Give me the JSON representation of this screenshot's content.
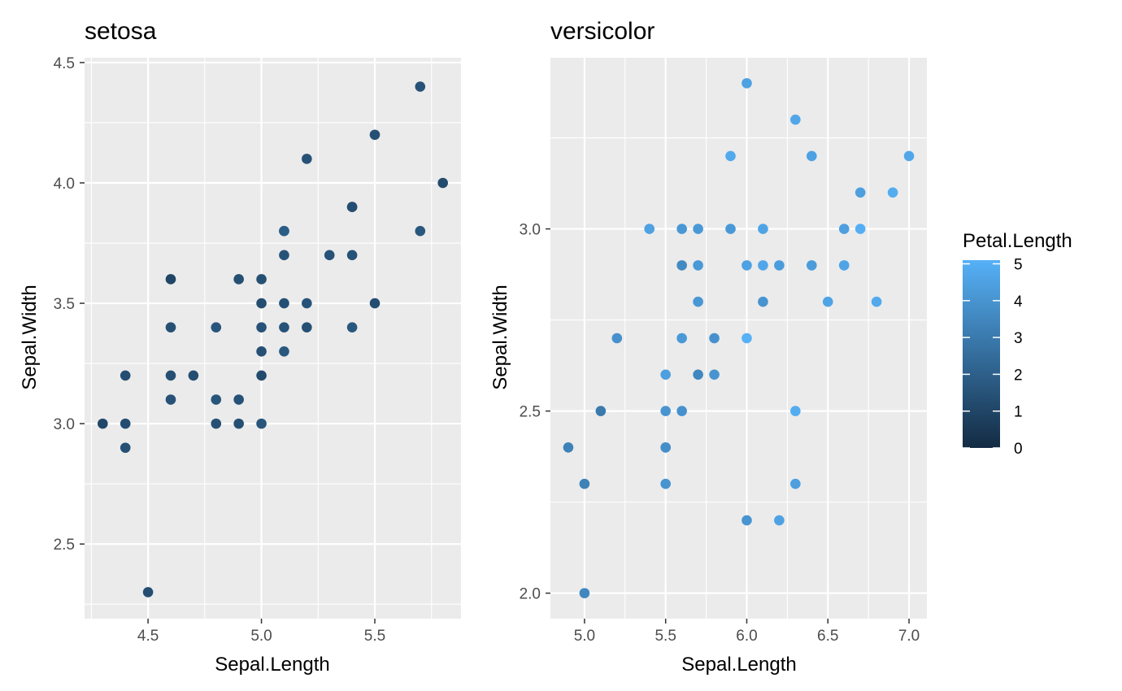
{
  "figure": {
    "legend_title": "Petal.Length",
    "legend_ticks": [
      0,
      1,
      2,
      3,
      4,
      5
    ],
    "colors": {
      "panel_bg": "#ebebeb",
      "grid": "#ffffff",
      "tick_text": "#4d4d4d",
      "low": "#132b43",
      "high": "#56b1f7"
    },
    "color_scale_limits": [
      0,
      5.1
    ]
  },
  "chart_data": [
    {
      "type": "scatter",
      "title": "setosa",
      "xlabel": "Sepal.Length",
      "ylabel": "Sepal.Width",
      "x_ticks": [
        4.5,
        5.0,
        5.5
      ],
      "x_tick_labels": [
        "4.5",
        "5.0",
        "5.5"
      ],
      "y_ticks": [
        2.5,
        3.0,
        3.5,
        4.0,
        4.5
      ],
      "y_tick_labels": [
        "2.5",
        "3.0",
        "3.5",
        "4.0",
        "4.5"
      ],
      "xlim": [
        4.22,
        5.88
      ],
      "ylim": [
        2.19,
        4.52
      ],
      "grid": true,
      "points": [
        {
          "x": 5.7,
          "y": 4.4,
          "c": 1.5
        },
        {
          "x": 5.5,
          "y": 4.2,
          "c": 1.4
        },
        {
          "x": 5.2,
          "y": 4.1,
          "c": 1.5
        },
        {
          "x": 5.8,
          "y": 4.0,
          "c": 1.2
        },
        {
          "x": 5.4,
          "y": 3.9,
          "c": 1.7
        },
        {
          "x": 5.4,
          "y": 3.9,
          "c": 1.3
        },
        {
          "x": 5.1,
          "y": 3.8,
          "c": 1.5
        },
        {
          "x": 5.7,
          "y": 3.8,
          "c": 1.7
        },
        {
          "x": 5.1,
          "y": 3.8,
          "c": 1.9
        },
        {
          "x": 5.1,
          "y": 3.7,
          "c": 1.5
        },
        {
          "x": 5.3,
          "y": 3.7,
          "c": 1.5
        },
        {
          "x": 5.4,
          "y": 3.7,
          "c": 1.5
        },
        {
          "x": 4.6,
          "y": 3.6,
          "c": 1.0
        },
        {
          "x": 4.9,
          "y": 3.6,
          "c": 1.4
        },
        {
          "x": 5.0,
          "y": 3.6,
          "c": 1.4
        },
        {
          "x": 5.0,
          "y": 3.5,
          "c": 1.3
        },
        {
          "x": 5.1,
          "y": 3.5,
          "c": 1.4
        },
        {
          "x": 5.2,
          "y": 3.5,
          "c": 1.5
        },
        {
          "x": 5.5,
          "y": 3.5,
          "c": 1.3
        },
        {
          "x": 4.6,
          "y": 3.4,
          "c": 1.4
        },
        {
          "x": 4.8,
          "y": 3.4,
          "c": 1.6
        },
        {
          "x": 5.0,
          "y": 3.4,
          "c": 1.5
        },
        {
          "x": 5.1,
          "y": 3.4,
          "c": 1.5
        },
        {
          "x": 5.2,
          "y": 3.4,
          "c": 1.4
        },
        {
          "x": 5.4,
          "y": 3.4,
          "c": 1.7
        },
        {
          "x": 5.0,
          "y": 3.3,
          "c": 1.4
        },
        {
          "x": 5.1,
          "y": 3.3,
          "c": 1.7
        },
        {
          "x": 4.4,
          "y": 3.2,
          "c": 1.3
        },
        {
          "x": 4.6,
          "y": 3.2,
          "c": 1.4
        },
        {
          "x": 4.7,
          "y": 3.2,
          "c": 1.3
        },
        {
          "x": 5.0,
          "y": 3.2,
          "c": 1.2
        },
        {
          "x": 4.6,
          "y": 3.1,
          "c": 1.5
        },
        {
          "x": 4.8,
          "y": 3.1,
          "c": 1.6
        },
        {
          "x": 4.9,
          "y": 3.1,
          "c": 1.5
        },
        {
          "x": 4.3,
          "y": 3.0,
          "c": 1.1
        },
        {
          "x": 4.4,
          "y": 3.0,
          "c": 1.3
        },
        {
          "x": 4.8,
          "y": 3.0,
          "c": 1.4
        },
        {
          "x": 4.9,
          "y": 3.0,
          "c": 1.4
        },
        {
          "x": 5.0,
          "y": 3.0,
          "c": 1.6
        },
        {
          "x": 4.4,
          "y": 2.9,
          "c": 1.4
        },
        {
          "x": 4.5,
          "y": 2.3,
          "c": 1.3
        }
      ]
    },
    {
      "type": "scatter",
      "title": "versicolor",
      "xlabel": "Sepal.Length",
      "ylabel": "Sepal.Width",
      "x_ticks": [
        5.0,
        5.5,
        6.0,
        6.5,
        7.0
      ],
      "x_tick_labels": [
        "5.0",
        "5.5",
        "6.0",
        "6.5",
        "7.0"
      ],
      "y_ticks": [
        2.0,
        2.5,
        3.0
      ],
      "y_tick_labels": [
        "2.0",
        "2.5",
        "3.0"
      ],
      "xlim": [
        4.79,
        7.11
      ],
      "ylim": [
        1.93,
        3.47
      ],
      "grid": true,
      "points": [
        {
          "x": 6.0,
          "y": 3.4,
          "c": 4.5
        },
        {
          "x": 6.3,
          "y": 3.3,
          "c": 4.7
        },
        {
          "x": 5.9,
          "y": 3.2,
          "c": 4.8
        },
        {
          "x": 6.4,
          "y": 3.2,
          "c": 4.5
        },
        {
          "x": 7.0,
          "y": 3.2,
          "c": 4.7
        },
        {
          "x": 6.7,
          "y": 3.1,
          "c": 4.4
        },
        {
          "x": 6.9,
          "y": 3.1,
          "c": 4.9
        },
        {
          "x": 5.4,
          "y": 3.0,
          "c": 4.5
        },
        {
          "x": 5.6,
          "y": 3.0,
          "c": 4.1
        },
        {
          "x": 5.7,
          "y": 3.0,
          "c": 4.2
        },
        {
          "x": 5.9,
          "y": 3.0,
          "c": 4.2
        },
        {
          "x": 6.1,
          "y": 3.0,
          "c": 4.6
        },
        {
          "x": 6.6,
          "y": 3.0,
          "c": 4.4
        },
        {
          "x": 6.7,
          "y": 3.0,
          "c": 5.0
        },
        {
          "x": 5.6,
          "y": 2.9,
          "c": 3.6
        },
        {
          "x": 5.7,
          "y": 2.9,
          "c": 4.2
        },
        {
          "x": 6.0,
          "y": 2.9,
          "c": 4.5
        },
        {
          "x": 6.1,
          "y": 2.9,
          "c": 4.7
        },
        {
          "x": 6.2,
          "y": 2.9,
          "c": 4.3
        },
        {
          "x": 6.4,
          "y": 2.9,
          "c": 4.3
        },
        {
          "x": 6.6,
          "y": 2.9,
          "c": 4.6
        },
        {
          "x": 5.7,
          "y": 2.8,
          "c": 4.1
        },
        {
          "x": 6.1,
          "y": 2.8,
          "c": 4.0
        },
        {
          "x": 6.5,
          "y": 2.8,
          "c": 4.6
        },
        {
          "x": 6.8,
          "y": 2.8,
          "c": 4.8
        },
        {
          "x": 5.2,
          "y": 2.7,
          "c": 3.9
        },
        {
          "x": 5.6,
          "y": 2.7,
          "c": 4.2
        },
        {
          "x": 5.8,
          "y": 2.7,
          "c": 3.9
        },
        {
          "x": 6.0,
          "y": 2.7,
          "c": 5.1
        },
        {
          "x": 5.5,
          "y": 2.6,
          "c": 4.4
        },
        {
          "x": 5.7,
          "y": 2.6,
          "c": 3.5
        },
        {
          "x": 5.8,
          "y": 2.6,
          "c": 4.0
        },
        {
          "x": 5.1,
          "y": 2.5,
          "c": 3.0
        },
        {
          "x": 5.5,
          "y": 2.5,
          "c": 4.0
        },
        {
          "x": 5.6,
          "y": 2.5,
          "c": 3.9
        },
        {
          "x": 6.3,
          "y": 2.5,
          "c": 4.9
        },
        {
          "x": 4.9,
          "y": 2.4,
          "c": 3.3
        },
        {
          "x": 5.5,
          "y": 2.4,
          "c": 3.7
        },
        {
          "x": 5.5,
          "y": 2.4,
          "c": 3.8
        },
        {
          "x": 5.0,
          "y": 2.3,
          "c": 3.3
        },
        {
          "x": 5.5,
          "y": 2.3,
          "c": 4.0
        },
        {
          "x": 6.3,
          "y": 2.3,
          "c": 4.4
        },
        {
          "x": 6.0,
          "y": 2.2,
          "c": 4.0
        },
        {
          "x": 6.2,
          "y": 2.2,
          "c": 4.5
        },
        {
          "x": 5.0,
          "y": 2.0,
          "c": 3.5
        }
      ]
    }
  ]
}
